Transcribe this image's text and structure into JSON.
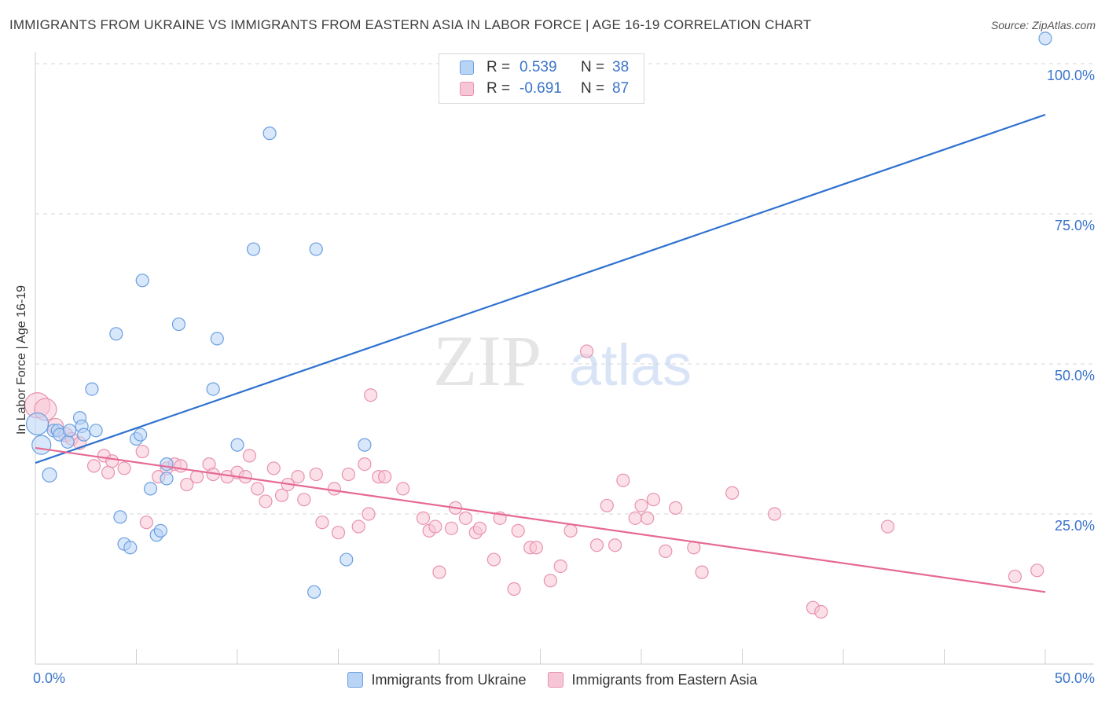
{
  "title": "IMMIGRANTS FROM UKRAINE VS IMMIGRANTS FROM EASTERN ASIA IN LABOR FORCE | AGE 16-19 CORRELATION CHART",
  "source": "Source: ZipAtlas.com",
  "watermark": {
    "zip": "ZIP",
    "atlas": "atlas"
  },
  "legend_top": {
    "rows": [
      {
        "r_label": "R =",
        "r_value": "0.539",
        "n_label": "N =",
        "n_value": "38"
      },
      {
        "r_label": "R =",
        "r_value": "-0.691",
        "n_label": "N =",
        "n_value": "87"
      }
    ]
  },
  "legend_bottom": {
    "items": [
      "Immigrants from Ukraine",
      "Immigrants from Eastern Asia"
    ]
  },
  "colors": {
    "ukraine_fill": "#b8d4f5",
    "ukraine_stroke": "#6a9fe0",
    "ukraine_line": "#2f72d0",
    "asia_fill": "#f7c6d6",
    "asia_stroke": "#e892b0",
    "asia_line": "#e56a94",
    "tick_label": "#3a74c9",
    "grid": "#d6d6d6"
  },
  "chart_data": {
    "type": "scatter",
    "title": "IMMIGRANTS FROM UKRAINE VS IMMIGRANTS FROM EASTERN ASIA IN LABOR FORCE | AGE 16-19 CORRELATION CHART",
    "xlabel": "",
    "ylabel": "In Labor Force | Age 16-19",
    "xlim": [
      0,
      50
    ],
    "ylim": [
      0,
      100
    ],
    "x_tick_labels": [
      {
        "value": 0,
        "label": "0.0%"
      },
      {
        "value": 50,
        "label": "50.0%"
      }
    ],
    "y_tick_labels": [
      {
        "value": 25,
        "label": "25.0%"
      },
      {
        "value": 50,
        "label": "50.0%"
      },
      {
        "value": 75,
        "label": "75.0%"
      },
      {
        "value": 100,
        "label": "100.0%"
      }
    ],
    "series": [
      {
        "name": "Immigrants from Ukraine",
        "r": 0.539,
        "n": 38,
        "trend": [
          [
            0,
            33.5
          ],
          [
            50,
            91.5
          ]
        ],
        "points": [
          [
            0.1,
            40.0,
            14
          ],
          [
            0.3,
            36.5,
            12
          ],
          [
            0.7,
            31.5,
            9
          ],
          [
            0.9,
            38.9,
            8
          ],
          [
            1.1,
            38.9,
            8
          ],
          [
            1.2,
            38.2,
            8
          ],
          [
            1.6,
            37.0,
            8
          ],
          [
            1.7,
            38.9,
            8
          ],
          [
            2.2,
            41.0,
            8
          ],
          [
            2.3,
            39.6,
            8
          ],
          [
            2.4,
            38.2,
            8
          ],
          [
            2.8,
            45.8,
            8
          ],
          [
            3.0,
            38.9,
            8
          ],
          [
            4.0,
            55.0,
            8
          ],
          [
            4.2,
            24.5,
            8
          ],
          [
            4.4,
            20.0,
            8
          ],
          [
            4.7,
            19.4,
            8
          ],
          [
            5.0,
            37.5,
            8
          ],
          [
            5.2,
            38.2,
            8
          ],
          [
            5.3,
            63.9,
            8
          ],
          [
            5.7,
            29.2,
            8
          ],
          [
            6.0,
            21.5,
            8
          ],
          [
            6.2,
            22.2,
            8
          ],
          [
            6.5,
            33.3,
            8
          ],
          [
            6.5,
            30.9,
            8
          ],
          [
            7.1,
            56.6,
            8
          ],
          [
            8.8,
            45.8,
            8
          ],
          [
            9.0,
            54.2,
            8
          ],
          [
            10.0,
            36.5,
            8
          ],
          [
            10.8,
            69.1,
            8
          ],
          [
            11.6,
            88.4,
            8
          ],
          [
            13.8,
            12.0,
            8
          ],
          [
            13.9,
            69.1,
            8
          ],
          [
            15.4,
            17.4,
            8
          ],
          [
            16.3,
            36.5,
            8
          ],
          [
            50.0,
            104.2,
            8
          ]
        ]
      },
      {
        "name": "Immigrants from Eastern Asia",
        "r": -0.691,
        "n": 87,
        "trend": [
          [
            0,
            36.0
          ],
          [
            50,
            12.0
          ]
        ],
        "points": [
          [
            0.1,
            43.1,
            16
          ],
          [
            0.5,
            42.4,
            14
          ],
          [
            1.0,
            39.6,
            10
          ],
          [
            1.5,
            38.2,
            9
          ],
          [
            1.8,
            37.5,
            8
          ],
          [
            2.2,
            36.8,
            8
          ],
          [
            2.9,
            33.0,
            8
          ],
          [
            3.4,
            34.7,
            8
          ],
          [
            3.6,
            31.9,
            8
          ],
          [
            3.8,
            33.8,
            8
          ],
          [
            4.4,
            32.6,
            8
          ],
          [
            5.3,
            35.4,
            8
          ],
          [
            5.5,
            23.6,
            8
          ],
          [
            6.1,
            31.2,
            8
          ],
          [
            6.5,
            32.6,
            8
          ],
          [
            6.9,
            33.3,
            8
          ],
          [
            7.2,
            33.0,
            8
          ],
          [
            7.5,
            29.9,
            8
          ],
          [
            8.0,
            31.2,
            8
          ],
          [
            8.6,
            33.3,
            8
          ],
          [
            8.8,
            31.6,
            8
          ],
          [
            9.5,
            31.2,
            8
          ],
          [
            10.0,
            31.9,
            8
          ],
          [
            10.4,
            31.2,
            8
          ],
          [
            10.6,
            34.7,
            8
          ],
          [
            11.0,
            29.2,
            8
          ],
          [
            11.4,
            27.1,
            8
          ],
          [
            11.8,
            32.6,
            8
          ],
          [
            12.2,
            28.1,
            8
          ],
          [
            12.5,
            29.9,
            8
          ],
          [
            13.0,
            31.2,
            8
          ],
          [
            13.3,
            27.4,
            8
          ],
          [
            13.9,
            31.6,
            8
          ],
          [
            14.2,
            23.6,
            8
          ],
          [
            14.8,
            29.2,
            8
          ],
          [
            15.0,
            21.9,
            8
          ],
          [
            15.5,
            31.6,
            8
          ],
          [
            16.0,
            22.9,
            8
          ],
          [
            16.3,
            33.3,
            8
          ],
          [
            16.5,
            25.0,
            8
          ],
          [
            16.6,
            44.8,
            8
          ],
          [
            17.0,
            31.2,
            8
          ],
          [
            17.3,
            31.2,
            8
          ],
          [
            18.2,
            29.2,
            8
          ],
          [
            19.2,
            24.3,
            8
          ],
          [
            19.5,
            22.2,
            8
          ],
          [
            19.8,
            22.9,
            8
          ],
          [
            20.0,
            15.3,
            8
          ],
          [
            20.6,
            22.6,
            8
          ],
          [
            20.8,
            26.0,
            8
          ],
          [
            21.3,
            24.3,
            8
          ],
          [
            21.8,
            21.9,
            8
          ],
          [
            22.0,
            22.6,
            8
          ],
          [
            22.7,
            17.4,
            8
          ],
          [
            23.0,
            24.3,
            8
          ],
          [
            23.7,
            12.5,
            8
          ],
          [
            23.9,
            22.2,
            8
          ],
          [
            24.5,
            19.4,
            8
          ],
          [
            24.8,
            19.4,
            8
          ],
          [
            25.5,
            13.9,
            8
          ],
          [
            26.0,
            16.3,
            8
          ],
          [
            26.5,
            22.2,
            8
          ],
          [
            27.3,
            52.1,
            8
          ],
          [
            27.8,
            19.8,
            8
          ],
          [
            28.3,
            26.4,
            8
          ],
          [
            28.7,
            19.8,
            8
          ],
          [
            29.1,
            30.6,
            8
          ],
          [
            29.7,
            24.3,
            8
          ],
          [
            30.0,
            26.4,
            8
          ],
          [
            30.3,
            24.3,
            8
          ],
          [
            30.6,
            27.4,
            8
          ],
          [
            31.2,
            18.8,
            8
          ],
          [
            31.7,
            26.0,
            8
          ],
          [
            32.6,
            19.4,
            8
          ],
          [
            33.0,
            15.3,
            8
          ],
          [
            34.5,
            28.5,
            8
          ],
          [
            36.6,
            25.0,
            8
          ],
          [
            38.5,
            9.4,
            8
          ],
          [
            38.9,
            8.7,
            8
          ],
          [
            42.2,
            22.9,
            8
          ],
          [
            48.5,
            14.6,
            8
          ],
          [
            49.6,
            15.6,
            8
          ]
        ]
      }
    ]
  }
}
